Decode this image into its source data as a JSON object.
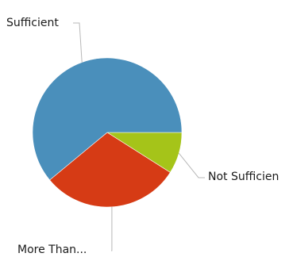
{
  "chart_data": {
    "type": "pie",
    "title": "",
    "legend": "none",
    "slices": [
      {
        "label": "Not Sufficien",
        "value": 9,
        "color": "#a5c419"
      },
      {
        "label": "More Than...",
        "value": 30,
        "color": "#d63b15"
      },
      {
        "label": "Sufficient",
        "value": 61,
        "color": "#4a8fbb"
      }
    ]
  }
}
